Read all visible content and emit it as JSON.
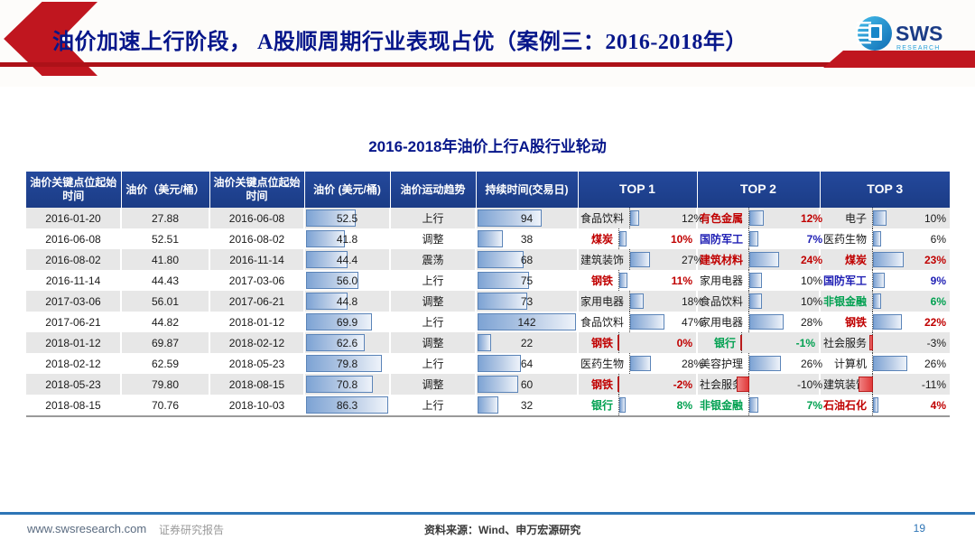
{
  "header": {
    "title": "油价加速上行阶段， A股顺周期行业表现占优（案例三：2016-2018年）",
    "logo": {
      "sws": "SWS",
      "research": "RESEARCH"
    },
    "accent_red": "#c0161f",
    "title_color": "#06168a"
  },
  "table": {
    "title": "2016-2018年油价上行A股行业轮动",
    "columns": [
      "油价关键点位起始时间",
      "油价（美元/桶）",
      "油价关键点位起始时间",
      "油价 (美元/桶)",
      "油价运动趋势",
      "持续时间(交易日)",
      "TOP 1",
      "TOP 2",
      "TOP 3"
    ],
    "header_bg": "#1b3c86",
    "bar_blue": "#7da3d4",
    "bar_red": "#e03a3a",
    "rows": [
      {
        "start_date": "2016-01-20",
        "start_price": "27.88",
        "end_date": "2016-06-08",
        "end_price": "52.5",
        "trend": "上行",
        "duration": "94",
        "top1": {
          "name": "食品饮料",
          "pct": "12%",
          "color": "black"
        },
        "top2": {
          "name": "有色金属",
          "pct": "12%",
          "color": "red"
        },
        "top3": {
          "name": "电子",
          "pct": "10%",
          "color": "black"
        }
      },
      {
        "start_date": "2016-06-08",
        "start_price": "52.51",
        "end_date": "2016-08-02",
        "end_price": "41.8",
        "trend": "调整",
        "duration": "38",
        "top1": {
          "name": "煤炭",
          "pct": "10%",
          "color": "red"
        },
        "top2": {
          "name": "国防军工",
          "pct": "7%",
          "color": "blue"
        },
        "top3": {
          "name": "医药生物",
          "pct": "6%",
          "color": "black"
        }
      },
      {
        "start_date": "2016-08-02",
        "start_price": "41.80",
        "end_date": "2016-11-14",
        "end_price": "44.4",
        "trend": "震荡",
        "duration": "68",
        "top1": {
          "name": "建筑装饰",
          "pct": "27%",
          "color": "black"
        },
        "top2": {
          "name": "建筑材料",
          "pct": "24%",
          "color": "red"
        },
        "top3": {
          "name": "煤炭",
          "pct": "23%",
          "color": "red"
        }
      },
      {
        "start_date": "2016-11-14",
        "start_price": "44.43",
        "end_date": "2017-03-06",
        "end_price": "56.0",
        "trend": "上行",
        "duration": "75",
        "top1": {
          "name": "钢铁",
          "pct": "11%",
          "color": "red"
        },
        "top2": {
          "name": "家用电器",
          "pct": "10%",
          "color": "black"
        },
        "top3": {
          "name": "国防军工",
          "pct": "9%",
          "color": "blue"
        }
      },
      {
        "start_date": "2017-03-06",
        "start_price": "56.01",
        "end_date": "2017-06-21",
        "end_price": "44.8",
        "trend": "调整",
        "duration": "73",
        "top1": {
          "name": "家用电器",
          "pct": "18%",
          "color": "black"
        },
        "top2": {
          "name": "食品饮料",
          "pct": "10%",
          "color": "black"
        },
        "top3": {
          "name": "非银金融",
          "pct": "6%",
          "color": "green"
        }
      },
      {
        "start_date": "2017-06-21",
        "start_price": "44.82",
        "end_date": "2018-01-12",
        "end_price": "69.9",
        "trend": "上行",
        "duration": "142",
        "top1": {
          "name": "食品饮料",
          "pct": "47%",
          "color": "black"
        },
        "top2": {
          "name": "家用电器",
          "pct": "28%",
          "color": "black"
        },
        "top3": {
          "name": "钢铁",
          "pct": "22%",
          "color": "red"
        }
      },
      {
        "start_date": "2018-01-12",
        "start_price": "69.87",
        "end_date": "2018-02-12",
        "end_price": "62.6",
        "trend": "调整",
        "duration": "22",
        "top1": {
          "name": "钢铁",
          "pct": "0%",
          "color": "red"
        },
        "top2": {
          "name": "银行",
          "pct": "-1%",
          "color": "green"
        },
        "top3": {
          "name": "社会服务",
          "pct": "-3%",
          "color": "black"
        }
      },
      {
        "start_date": "2018-02-12",
        "start_price": "62.59",
        "end_date": "2018-05-23",
        "end_price": "79.8",
        "trend": "上行",
        "duration": "64",
        "top1": {
          "name": "医药生物",
          "pct": "28%",
          "color": "black"
        },
        "top2": {
          "name": "美容护理",
          "pct": "26%",
          "color": "black"
        },
        "top3": {
          "name": "计算机",
          "pct": "26%",
          "color": "black"
        }
      },
      {
        "start_date": "2018-05-23",
        "start_price": "79.80",
        "end_date": "2018-08-15",
        "end_price": "70.8",
        "trend": "调整",
        "duration": "60",
        "top1": {
          "name": "钢铁",
          "pct": "-2%",
          "color": "red"
        },
        "top2": {
          "name": "社会服务",
          "pct": "-10%",
          "color": "black"
        },
        "top3": {
          "name": "建筑装饰",
          "pct": "-11%",
          "color": "black"
        }
      },
      {
        "start_date": "2018-08-15",
        "start_price": "70.76",
        "end_date": "2018-10-03",
        "end_price": "86.3",
        "trend": "上行",
        "duration": "32",
        "top1": {
          "name": "银行",
          "pct": "8%",
          "color": "green"
        },
        "top2": {
          "name": "非银金融",
          "pct": "7%",
          "color": "green"
        },
        "top3": {
          "name": "石油石化",
          "pct": "4%",
          "color": "red"
        }
      }
    ]
  },
  "footer": {
    "site": "www.swsresearch.com",
    "report": "证券研究报告",
    "source": "资料来源：Wind、申万宏源研究",
    "page": "19"
  },
  "palette": {
    "text_red": "#c00000",
    "text_green": "#00a050",
    "text_blue": "#1f1fb4",
    "footer_blue": "#2e75b6"
  }
}
